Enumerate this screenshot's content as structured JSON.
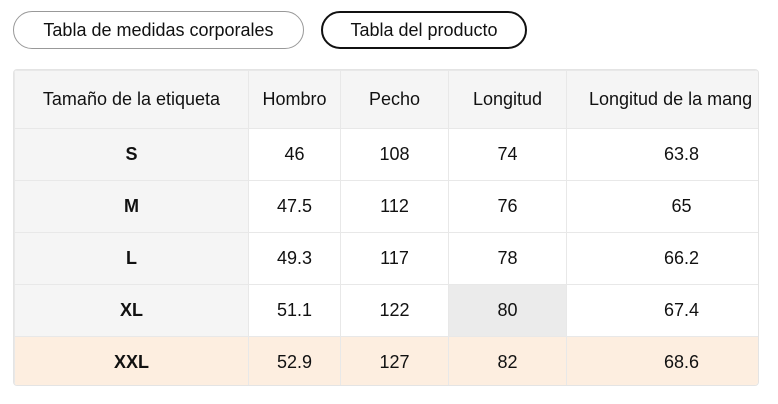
{
  "tabs": [
    "Tabla de medidas corporales",
    "Tabla del producto"
  ],
  "table": {
    "header": [
      "Tamaño de la etiqueta",
      "Hombro",
      "Pecho",
      "Longitud",
      "Longitud de la mang"
    ],
    "rows": [
      [
        "S",
        "46",
        "108",
        "74",
        "63.8"
      ],
      [
        "M",
        "47.5",
        "112",
        "76",
        "65"
      ],
      [
        "L",
        "49.3",
        "117",
        "78",
        "66.2"
      ],
      [
        "XL",
        "51.1",
        "122",
        "80",
        "67.4"
      ],
      [
        "XXL",
        "52.9",
        "127",
        "82",
        "68.6"
      ]
    ]
  }
}
